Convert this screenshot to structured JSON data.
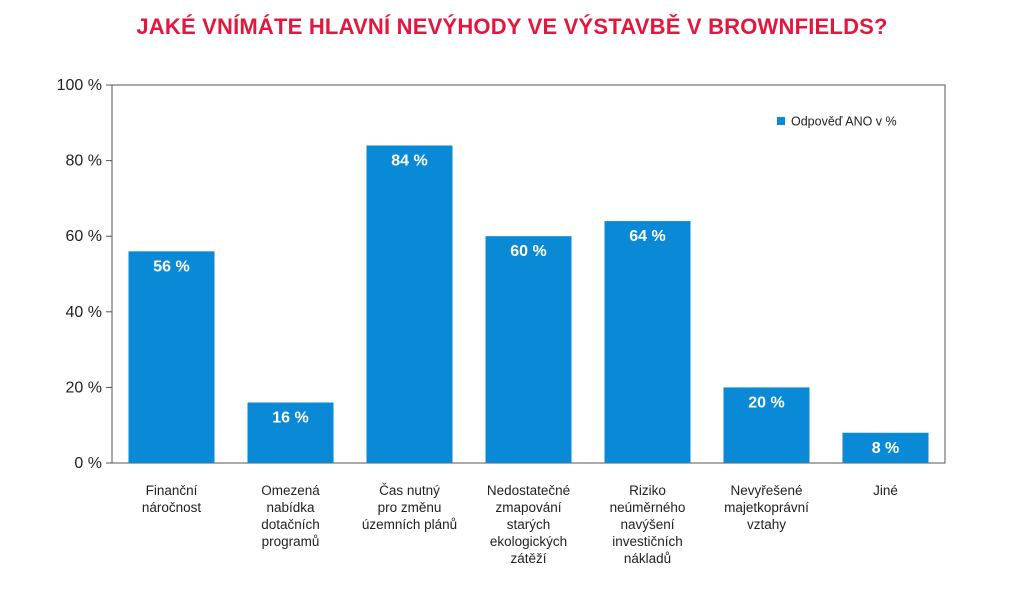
{
  "chart_data": {
    "type": "bar",
    "title": "JAKÉ VNÍMÁTE HLAVNÍ NEVÝHODY VE VÝSTAVBĚ V BROWNFIELDS?",
    "categories": [
      [
        "Finanční",
        "náročnost"
      ],
      [
        "Omezená",
        "nabídka",
        "dotačních",
        "programů"
      ],
      [
        "Čas nutný",
        "pro změnu",
        "územních plánů"
      ],
      [
        "Nedostatečné",
        "zmapování",
        "starých",
        "ekologických",
        "zátěží"
      ],
      [
        "Riziko",
        "neúměrného",
        "navýšení",
        "investičních",
        "nákladů"
      ],
      [
        "Nevyřešené",
        "majetkoprávní",
        "vztahy"
      ],
      [
        "Jiné"
      ]
    ],
    "series": [
      {
        "name": "Odpověď ANO v %",
        "values": [
          56,
          16,
          84,
          60,
          64,
          20,
          8
        ],
        "labels": [
          "56 %",
          "16 %",
          "84 %",
          "60 %",
          "64 %",
          "20 %",
          "8 %"
        ]
      }
    ],
    "ylim": [
      0,
      100
    ],
    "yticks": [
      "0 %",
      "20 %",
      "40 %",
      "60 %",
      "80 %",
      "100 %"
    ],
    "ytick_values": [
      0,
      20,
      40,
      60,
      80,
      100
    ],
    "grid": false,
    "legend_position": "top-right",
    "colors": {
      "bar": "#0a8ad6",
      "title": "#e3173e",
      "axis": "#555555"
    }
  }
}
